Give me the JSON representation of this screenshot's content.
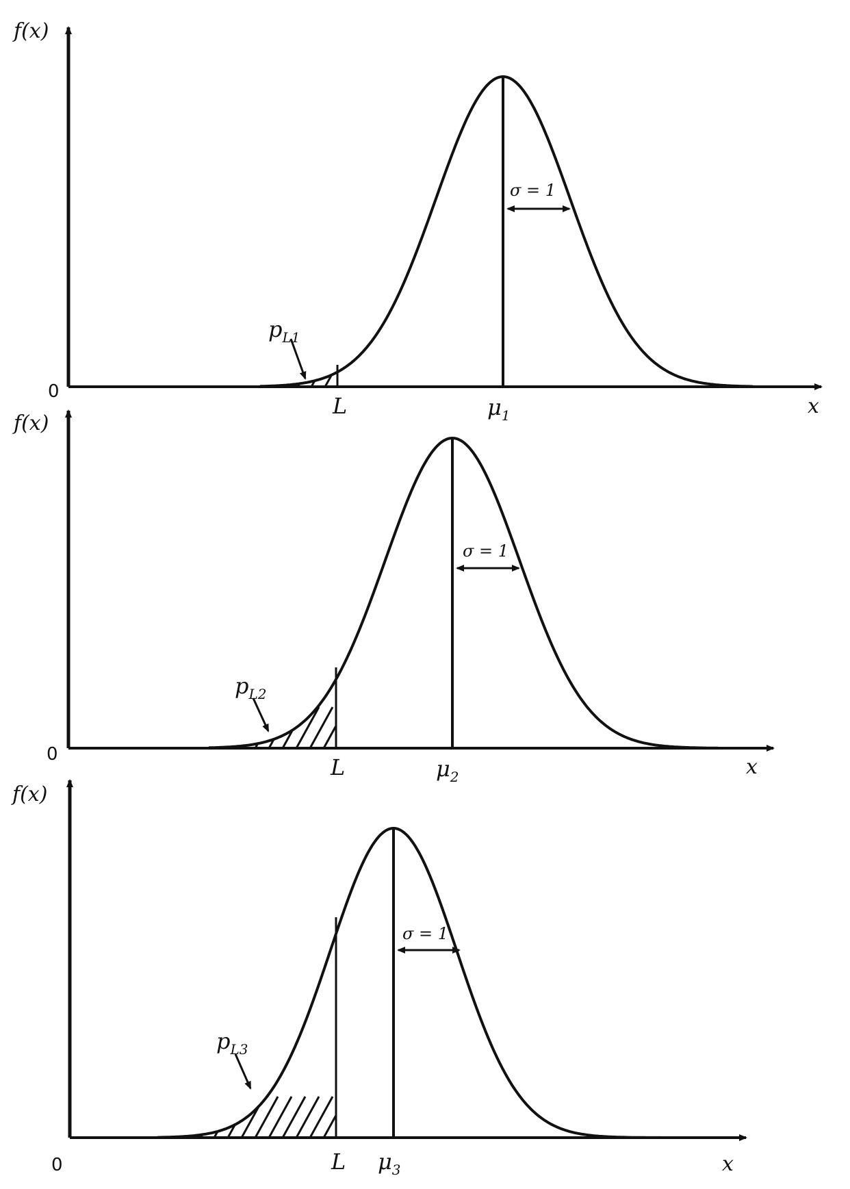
{
  "panels": [
    {
      "y_axis_label": "f(x)",
      "x_axis_label": "x",
      "origin_label": "0",
      "limit_label": "L",
      "mean_symbol": "μ",
      "mean_subscript": "1",
      "sigma_label": "σ = 1",
      "tail_symbol": "p",
      "tail_subscript": "L1"
    },
    {
      "y_axis_label": "f(x)",
      "x_axis_label": "x",
      "origin_label": "0",
      "limit_label": "L",
      "mean_symbol": "μ",
      "mean_subscript": "2",
      "sigma_label": "σ = 1",
      "tail_symbol": "p",
      "tail_subscript": "L2"
    },
    {
      "y_axis_label": "f(x)",
      "x_axis_label": "x",
      "origin_label": "0",
      "limit_label": "L",
      "mean_symbol": "μ",
      "mean_subscript": "3",
      "sigma_label": "σ = 1",
      "tail_symbol": "p",
      "tail_subscript": "L3"
    }
  ],
  "colors": {
    "ink": "#111111",
    "background": "#ffffff"
  }
}
